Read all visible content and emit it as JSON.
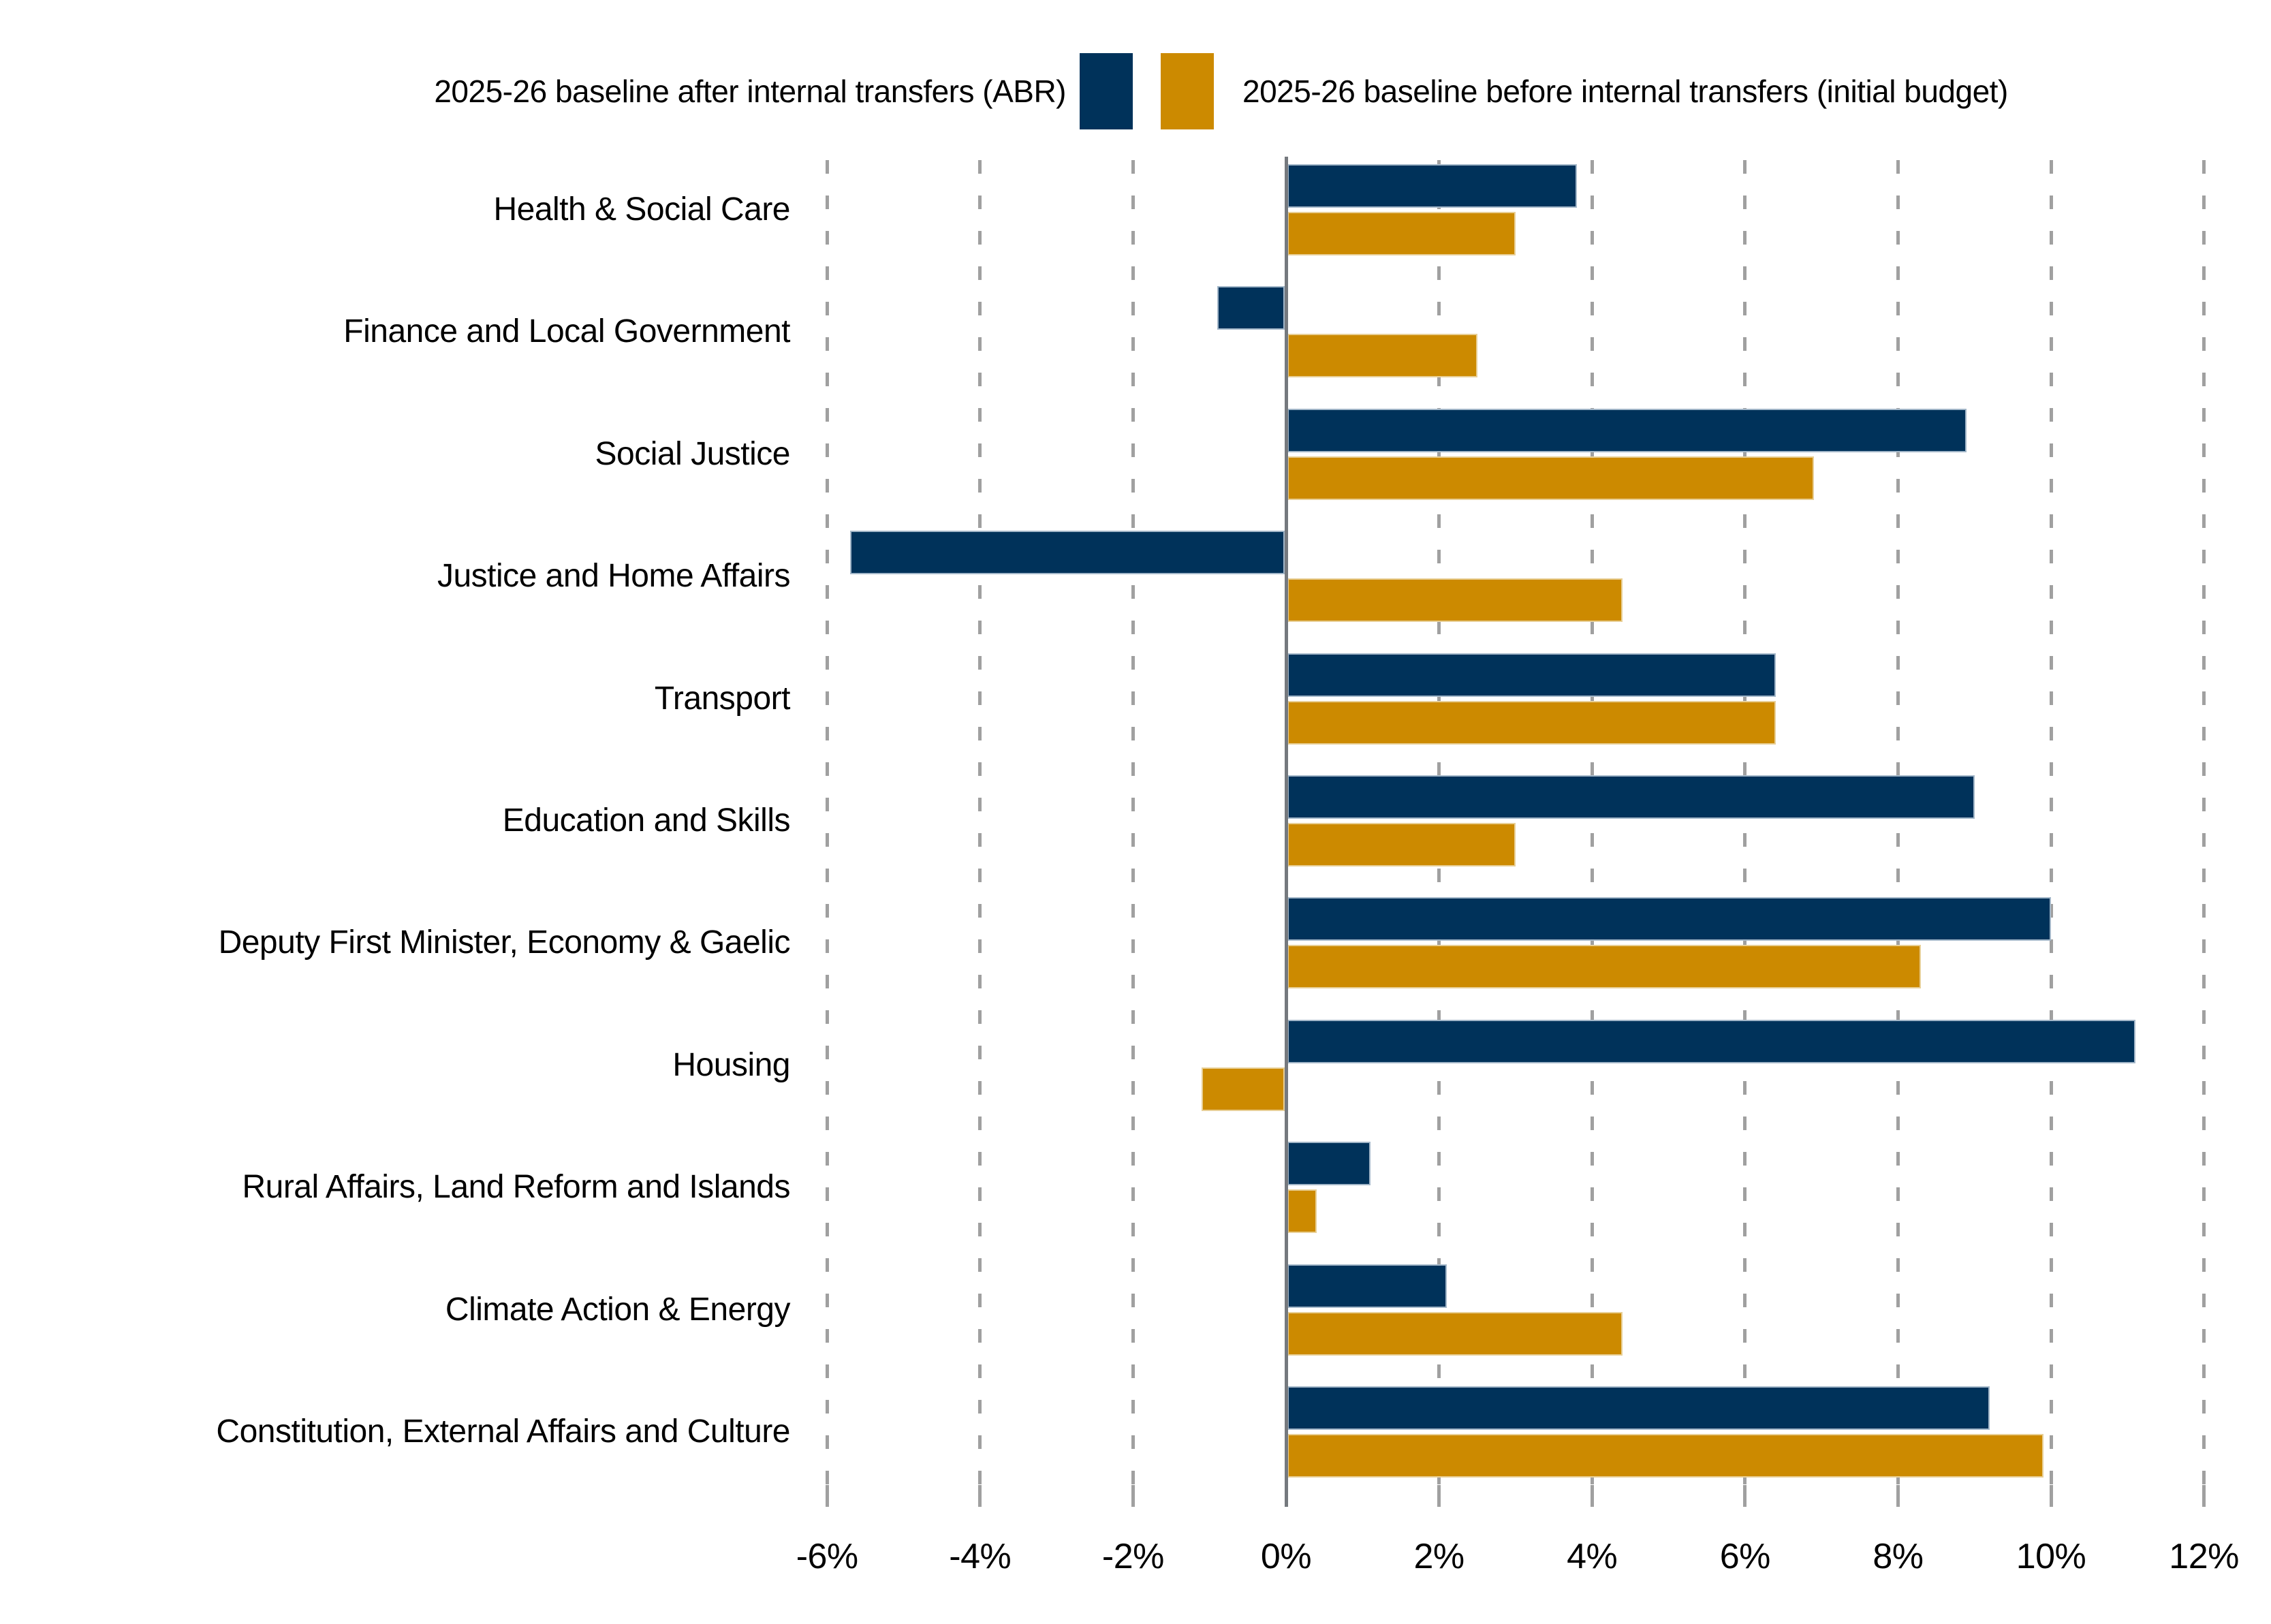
{
  "legend": {
    "items": [
      {
        "label": "2025-26 baseline after internal transfers (ABR)",
        "color": "#00325a"
      },
      {
        "label": "2025-26 baseline before internal transfers (initial budget)",
        "color": "#cc8a00"
      }
    ]
  },
  "colors": {
    "navy": "#00325a",
    "gold": "#cc8a00",
    "zero_axis": "#75797e",
    "gridline": "#a0a0a0",
    "text": "#000000",
    "background": "#ffffff"
  },
  "chart_data": {
    "type": "bar",
    "orientation": "horizontal",
    "title": "",
    "xlabel": "",
    "ylabel": "",
    "categories": [
      "Health & Social Care",
      "Finance and Local Government",
      "Social Justice",
      "Justice and Home Affairs",
      "Transport",
      "Education and Skills",
      "Deputy First Minister, Economy & Gaelic",
      "Housing",
      "Rural Affairs, Land Reform and Islands",
      "Climate Action & Energy",
      "Constitution, External Affairs and Culture"
    ],
    "series": [
      {
        "name": "2025-26 baseline after internal transfers (ABR)",
        "color": "#00325a",
        "values": [
          3.8,
          -0.9,
          8.9,
          -5.7,
          6.4,
          9.0,
          10.0,
          11.1,
          1.1,
          2.1,
          9.2
        ]
      },
      {
        "name": "2025-26 baseline before internal transfers (initial budget)",
        "color": "#cc8a00",
        "values": [
          3.0,
          2.5,
          6.9,
          4.4,
          6.4,
          3.0,
          8.3,
          -1.1,
          0.4,
          4.4,
          9.9
        ]
      }
    ],
    "x_axis": {
      "unit": "%",
      "min": -6,
      "max": 12,
      "tick_values": [
        -6,
        -4,
        -2,
        0,
        2,
        4,
        6,
        8,
        10,
        12
      ],
      "tick_labels": [
        "-6%",
        "-4%",
        "-2%",
        "0%",
        "2%",
        "4%",
        "6%",
        "8%",
        "10%",
        "12%"
      ],
      "gridlines": "dashed",
      "zero_line": true
    },
    "legend_position": "top"
  }
}
